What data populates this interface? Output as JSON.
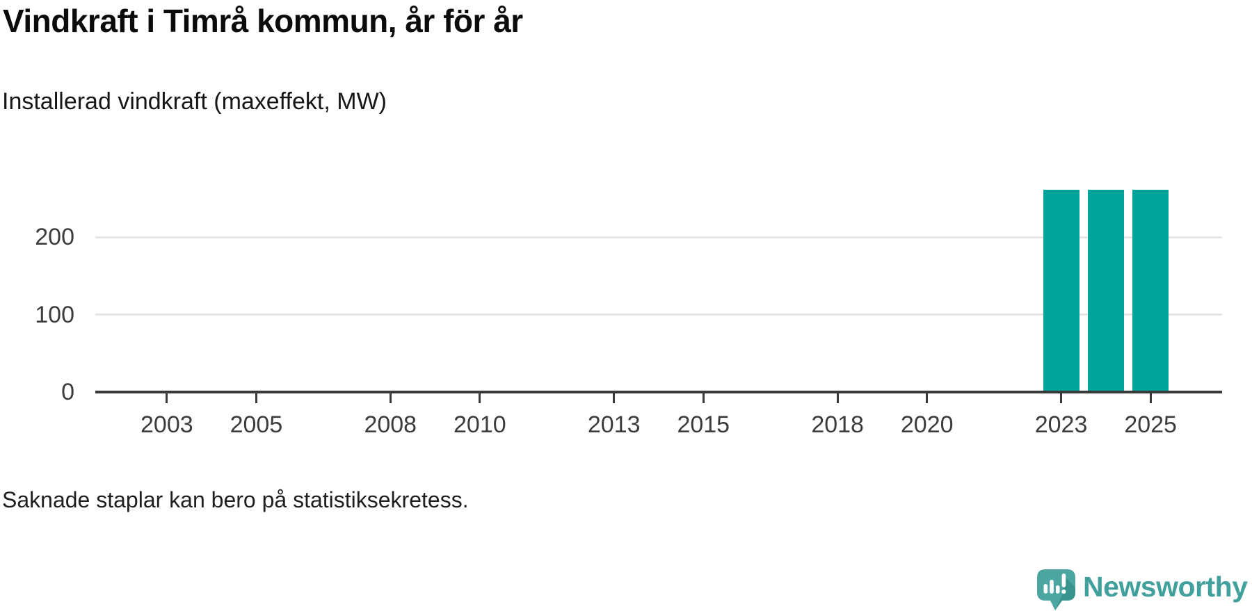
{
  "page": {
    "title": "Vindkraft i Timrå kommun, år för år",
    "subtitle": "Installerad vindkraft (maxeffekt, MW)",
    "footnote": "Saknade staplar kan bero på statistiksekretess."
  },
  "brand": {
    "name": "Newsworthy",
    "icon": "newsworthy-speech-bubble-chart-icon"
  },
  "colors": {
    "bar": "#00a49a",
    "axis": "#3a3a3a",
    "grid": "#e6e6e6",
    "label": "#3c3c3c",
    "title": "#0b0b0b",
    "text": "#1f1f1f",
    "brand_teal": "#41a09b",
    "brand_bubble": "#4ba5a0",
    "brand_bubble_dark": "#3a948e"
  },
  "chart_data": {
    "type": "bar",
    "title": "Vindkraft i Timrå kommun, år för år",
    "subtitle": "Installerad vindkraft (maxeffekt, MW)",
    "ylabel": "Installerad vindkraft (maxeffekt, MW)",
    "unit": "MW",
    "x": [
      2023,
      2024,
      2025
    ],
    "values": [
      261,
      261,
      261
    ],
    "x_ticks": [
      2003,
      2005,
      2008,
      2010,
      2013,
      2015,
      2018,
      2020,
      2023,
      2025
    ],
    "y_ticks": [
      0,
      100,
      200
    ],
    "x_domain": [
      2001.4,
      2026.6
    ],
    "ylim": [
      0,
      300
    ],
    "grid": "horizontal-only",
    "legend": "none",
    "note": "Saknade staplar kan bero på statistiksekretess."
  }
}
